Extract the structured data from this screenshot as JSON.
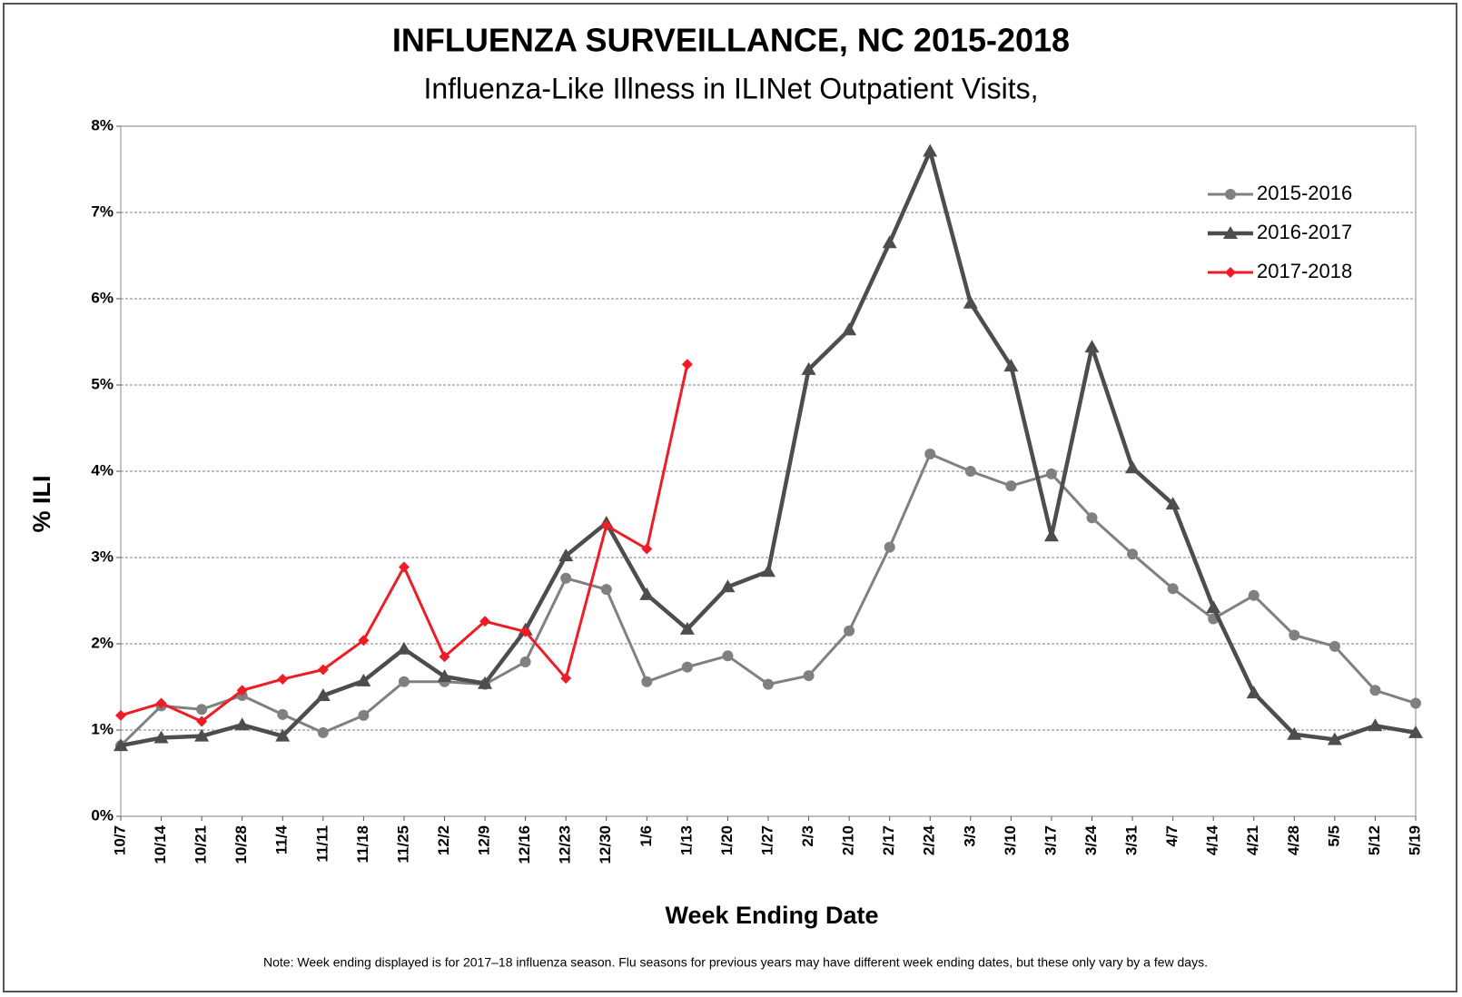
{
  "chart_data": {
    "type": "line",
    "title": "INFLUENZA SURVEILLANCE, NC 2015-2018",
    "subtitle": "Influenza-Like Illness in ILINet Outpatient Visits,",
    "y_label": "% ILI",
    "x_label": "Week Ending Date",
    "note": "Note: Week ending displayed is for 2017–18 influenza season. Flu seasons for previous years may have different week ending dates, but these only vary by a few days.",
    "categories": [
      "10/7",
      "10/14",
      "10/21",
      "10/28",
      "11/4",
      "11/11",
      "11/18",
      "11/25",
      "12/2",
      "12/9",
      "12/16",
      "12/23",
      "12/30",
      "1/6",
      "1/13",
      "1/20",
      "1/27",
      "2/3",
      "2/10",
      "2/17",
      "2/24",
      "3/3",
      "3/10",
      "3/17",
      "3/24",
      "3/31",
      "4/7",
      "4/14",
      "4/21",
      "4/28",
      "5/5",
      "5/12",
      "5/19"
    ],
    "series": [
      {
        "name": "2015-2016",
        "color": "#808080",
        "marker": "circle",
        "values": [
          0.82,
          1.28,
          1.24,
          1.4,
          1.18,
          0.97,
          1.17,
          1.56,
          1.56,
          1.53,
          1.79,
          2.76,
          2.63,
          1.56,
          1.73,
          1.86,
          1.53,
          1.63,
          2.15,
          3.12,
          4.2,
          4.0,
          3.83,
          3.97,
          3.46,
          3.04,
          2.64,
          2.29,
          2.56,
          2.1,
          1.97,
          1.46,
          1.31
        ]
      },
      {
        "name": "2016-2017",
        "color": "#4d4d4d",
        "marker": "triangle",
        "values": [
          0.82,
          0.91,
          0.93,
          1.06,
          0.93,
          1.4,
          1.57,
          1.94,
          1.62,
          1.54,
          2.16,
          3.02,
          3.4,
          2.57,
          2.17,
          2.66,
          2.84,
          5.18,
          5.64,
          6.65,
          7.71,
          5.95,
          5.22,
          3.25,
          5.44,
          4.04,
          3.62,
          2.42,
          1.43,
          0.95,
          0.89,
          1.05,
          0.97
        ]
      },
      {
        "name": "2017-2018",
        "color": "#ee1c25",
        "marker": "diamond",
        "values": [
          1.17,
          1.31,
          1.1,
          1.46,
          1.59,
          1.7,
          2.04,
          2.89,
          1.85,
          2.26,
          2.14,
          1.6,
          3.37,
          3.1,
          5.24,
          null,
          null,
          null,
          null,
          null,
          null,
          null,
          null,
          null,
          null,
          null,
          null,
          null,
          null,
          null,
          null,
          null,
          null
        ]
      }
    ],
    "ylim": [
      0,
      8
    ],
    "yticks": [
      {
        "value": 0,
        "label": "0%"
      },
      {
        "value": 1,
        "label": "1%"
      },
      {
        "value": 2,
        "label": "2%"
      },
      {
        "value": 3,
        "label": "3%"
      },
      {
        "value": 4,
        "label": "4%"
      },
      {
        "value": 5,
        "label": "5%"
      },
      {
        "value": 6,
        "label": "6%"
      },
      {
        "value": 7,
        "label": "7%"
      },
      {
        "value": 8,
        "label": "8%"
      }
    ],
    "grid": true,
    "legend": "upper right"
  }
}
